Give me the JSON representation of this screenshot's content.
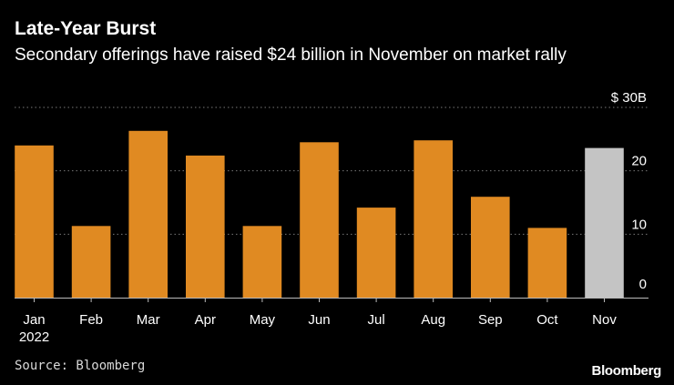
{
  "title": "Late-Year Burst",
  "subtitle": "Secondary offerings have raised $24 billion in November on market rally",
  "source": "Source: Bloomberg",
  "brand": "Bloomberg",
  "colors": {
    "background": "#000000",
    "bar": "#e08a22",
    "bar_highlight": "#c4c4c4",
    "grid": "#777777",
    "text": "#ffffff"
  },
  "chart_data": {
    "type": "bar",
    "categories": [
      "Jan",
      "Feb",
      "Mar",
      "Apr",
      "May",
      "Jun",
      "Jul",
      "Aug",
      "Sep",
      "Oct",
      "Nov"
    ],
    "category_sublabels": [
      "2022",
      "",
      "",
      "",
      "",
      "",
      "",
      "",
      "",
      "",
      ""
    ],
    "values": [
      24,
      11.3,
      26.3,
      22.4,
      11.3,
      24.5,
      14.2,
      24.8,
      15.9,
      11,
      23.6
    ],
    "highlight_index": 10,
    "ylim": [
      0,
      30
    ],
    "yticks": [
      0,
      10,
      20,
      30
    ],
    "ytick_labels": [
      "0",
      "10",
      "20",
      "$ 30B"
    ],
    "grid": true,
    "gridline_style": "dotted",
    "yaxis_position": "right"
  }
}
